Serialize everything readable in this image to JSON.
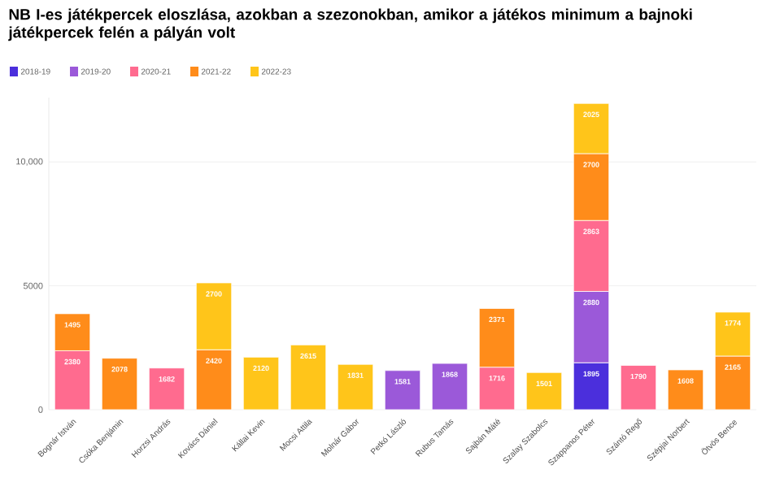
{
  "chart_data": {
    "type": "bar",
    "stacked": true,
    "title": "NB I-es játékpercek eloszlása, azokban a szezonokban, amikor a játékos minimum a bajnoki játékpercek felén a pályán volt",
    "categories": [
      "Bognár István",
      "Csóka Benjámin",
      "Horzsi András",
      "Kovács Dániel",
      "Kállai Kevin",
      "Mocsi Attila",
      "Molnár Gábor",
      "Petkó László",
      "Rubus Tamás",
      "Sajbán Máté",
      "Szalay Szabolcs",
      "Szappanos Péter",
      "Szántó Regő",
      "Szépjai Norbert",
      "Ötvös Bence"
    ],
    "series": [
      {
        "name": "2018-19",
        "color": "#4b2fdc",
        "values": [
          null,
          null,
          null,
          null,
          null,
          null,
          null,
          null,
          null,
          null,
          null,
          1895,
          null,
          null,
          null
        ]
      },
      {
        "name": "2019-20",
        "color": "#9b59d9",
        "values": [
          null,
          null,
          null,
          null,
          null,
          null,
          null,
          1581,
          1868,
          null,
          null,
          2880,
          null,
          null,
          null
        ]
      },
      {
        "name": "2020-21",
        "color": "#ff6b8f",
        "values": [
          2380,
          null,
          1682,
          null,
          null,
          null,
          null,
          null,
          null,
          1716,
          null,
          2863,
          1790,
          null,
          null
        ]
      },
      {
        "name": "2021-22",
        "color": "#ff8c1a",
        "values": [
          1495,
          2078,
          null,
          2420,
          null,
          null,
          null,
          null,
          null,
          2371,
          null,
          2700,
          null,
          1608,
          2165
        ]
      },
      {
        "name": "2022-23",
        "color": "#ffc51a",
        "values": [
          null,
          null,
          null,
          2700,
          2120,
          2615,
          1831,
          null,
          null,
          null,
          1501,
          2025,
          null,
          null,
          1774
        ]
      }
    ],
    "ylim": [
      0,
      12600
    ],
    "yticks": [
      0,
      5000,
      {
        "value": 10000,
        "label": "10,000"
      }
    ],
    "grid": "y",
    "legend": "top left",
    "data_labels": true
  }
}
